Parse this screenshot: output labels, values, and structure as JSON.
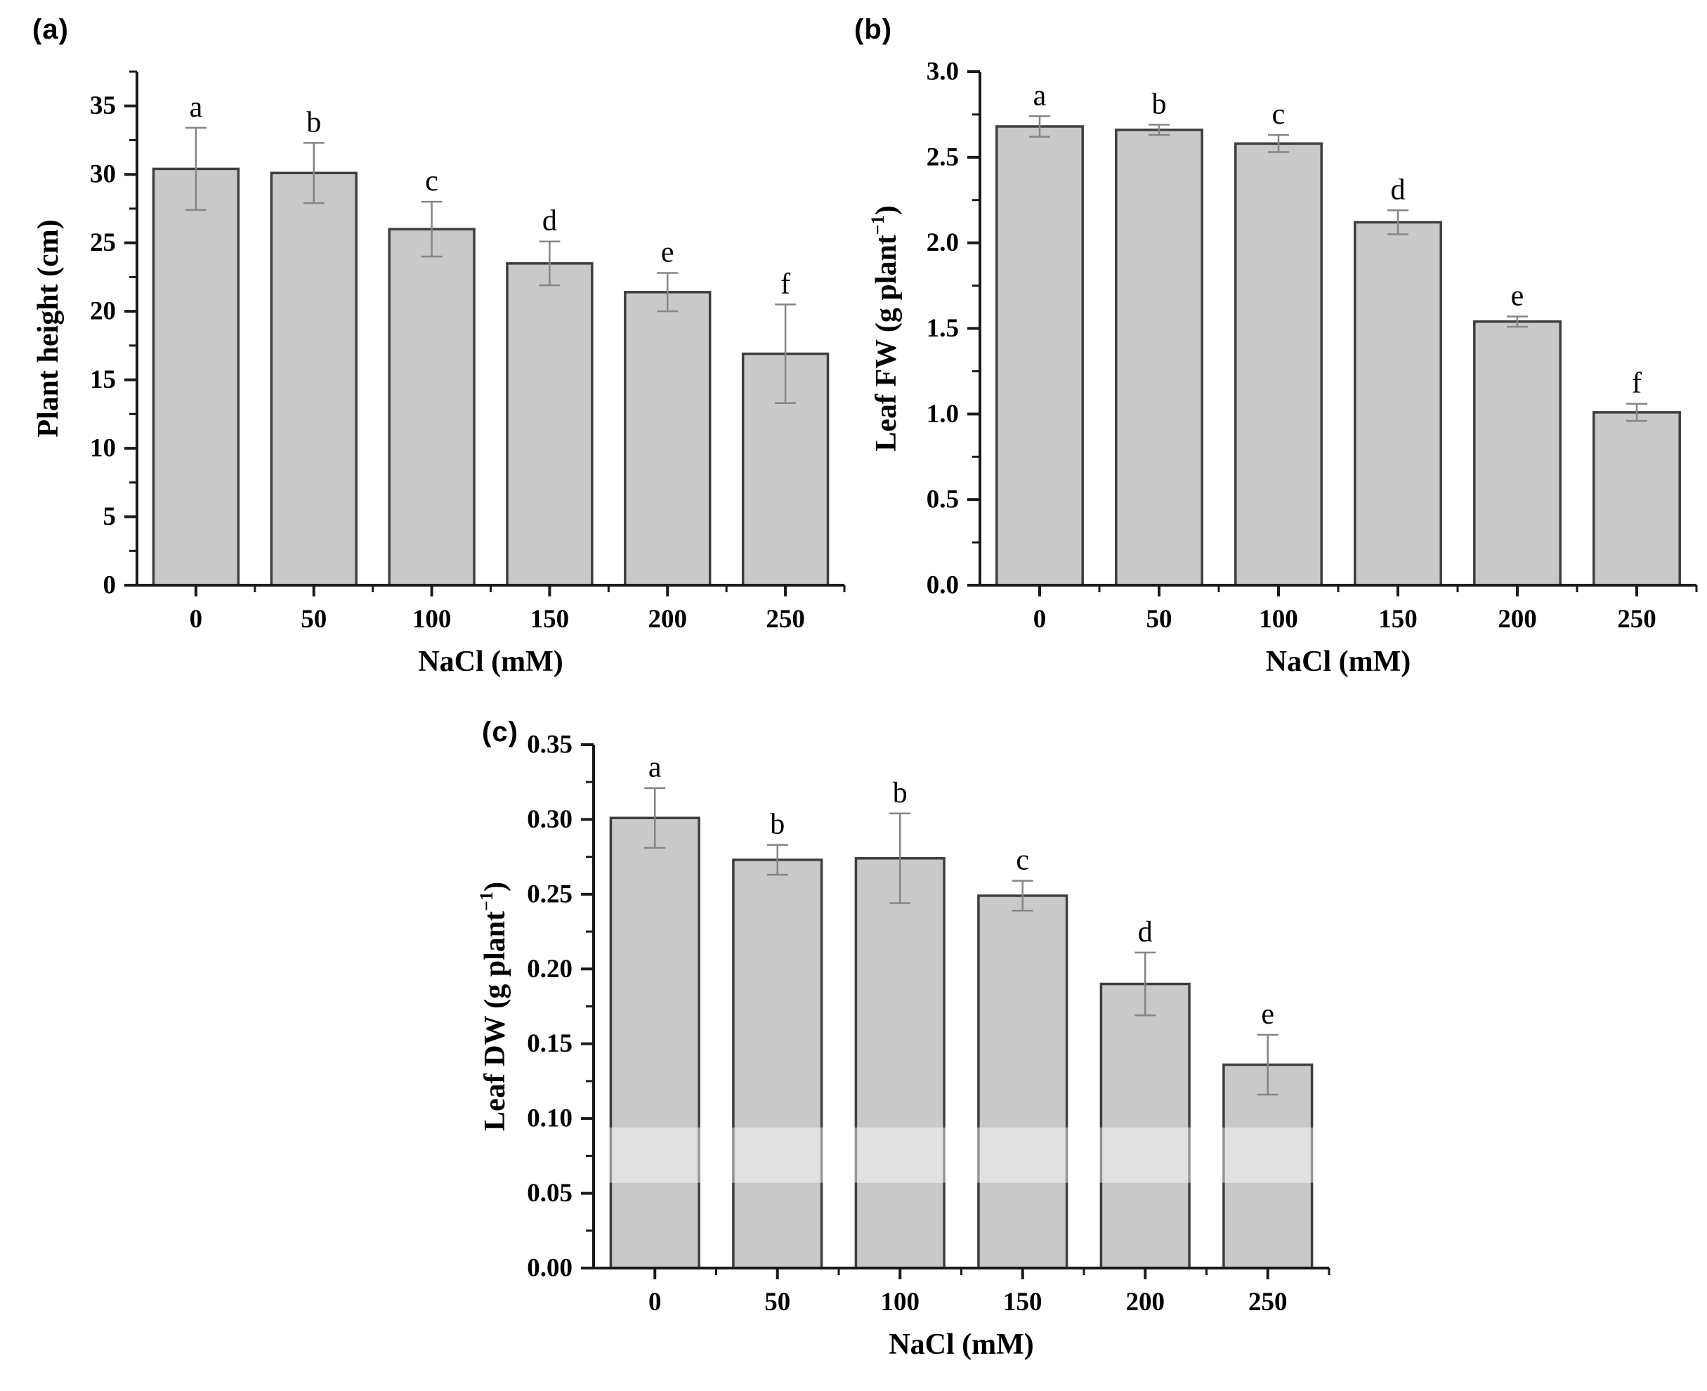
{
  "styles": {
    "bar_fill": "#c9c9c9",
    "bar_stroke": "#3e3e3e",
    "axis_color": "#1a1a1a",
    "error_color": "#858585",
    "text_color": "#000000",
    "band_overlay": "rgba(255,255,255,0.45)"
  },
  "chart_data": [
    {
      "id": "a",
      "panel_label": "(a)",
      "type": "bar",
      "title": "",
      "xlabel": "NaCl (mM)",
      "ylabel": "Plant height (cm)",
      "categories": [
        "0",
        "50",
        "100",
        "150",
        "200",
        "250"
      ],
      "values": [
        30.4,
        30.1,
        26.0,
        23.5,
        21.4,
        16.9
      ],
      "errors": [
        3.0,
        2.2,
        2.0,
        1.6,
        1.4,
        3.6
      ],
      "sig_letters": [
        "a",
        "b",
        "c",
        "d",
        "e",
        "f"
      ],
      "ylim": [
        0,
        37.5
      ],
      "ytick_step": 5,
      "yminor_step": 2.5,
      "ytick_decimals": 0,
      "grid": false,
      "legend": null
    },
    {
      "id": "b",
      "panel_label": "(b)",
      "type": "bar",
      "title": "",
      "xlabel": "NaCl (mM)",
      "ylabel": "Leaf FW (g plant⁻¹)",
      "categories": [
        "0",
        "50",
        "100",
        "150",
        "200",
        "250"
      ],
      "values": [
        2.68,
        2.66,
        2.58,
        2.12,
        1.54,
        1.01
      ],
      "errors": [
        0.06,
        0.03,
        0.05,
        0.07,
        0.03,
        0.05
      ],
      "sig_letters": [
        "a",
        "b",
        "c",
        "d",
        "e",
        "f"
      ],
      "ylim": [
        0,
        3.0
      ],
      "ytick_step": 0.5,
      "yminor_step": 0.25,
      "ytick_decimals": 1,
      "grid": false,
      "legend": null
    },
    {
      "id": "c",
      "panel_label": "(c)",
      "type": "bar",
      "title": "",
      "xlabel": "NaCl (mM)",
      "ylabel": "Leaf DW (g plant⁻¹)",
      "categories": [
        "0",
        "50",
        "100",
        "150",
        "200",
        "250"
      ],
      "values": [
        0.301,
        0.273,
        0.274,
        0.249,
        0.19,
        0.136
      ],
      "errors": [
        0.02,
        0.01,
        0.03,
        0.01,
        0.021,
        0.02
      ],
      "sig_letters": [
        "a",
        "b",
        "b",
        "c",
        "d",
        "e"
      ],
      "ylim": [
        0,
        0.35
      ],
      "ytick_step": 0.05,
      "yminor_step": 0.025,
      "ytick_decimals": 2,
      "grid": false,
      "legend": null,
      "band": {
        "y_from": 0.057,
        "y_to": 0.094,
        "note": "lighter horizontal band artifact across bars"
      }
    }
  ]
}
